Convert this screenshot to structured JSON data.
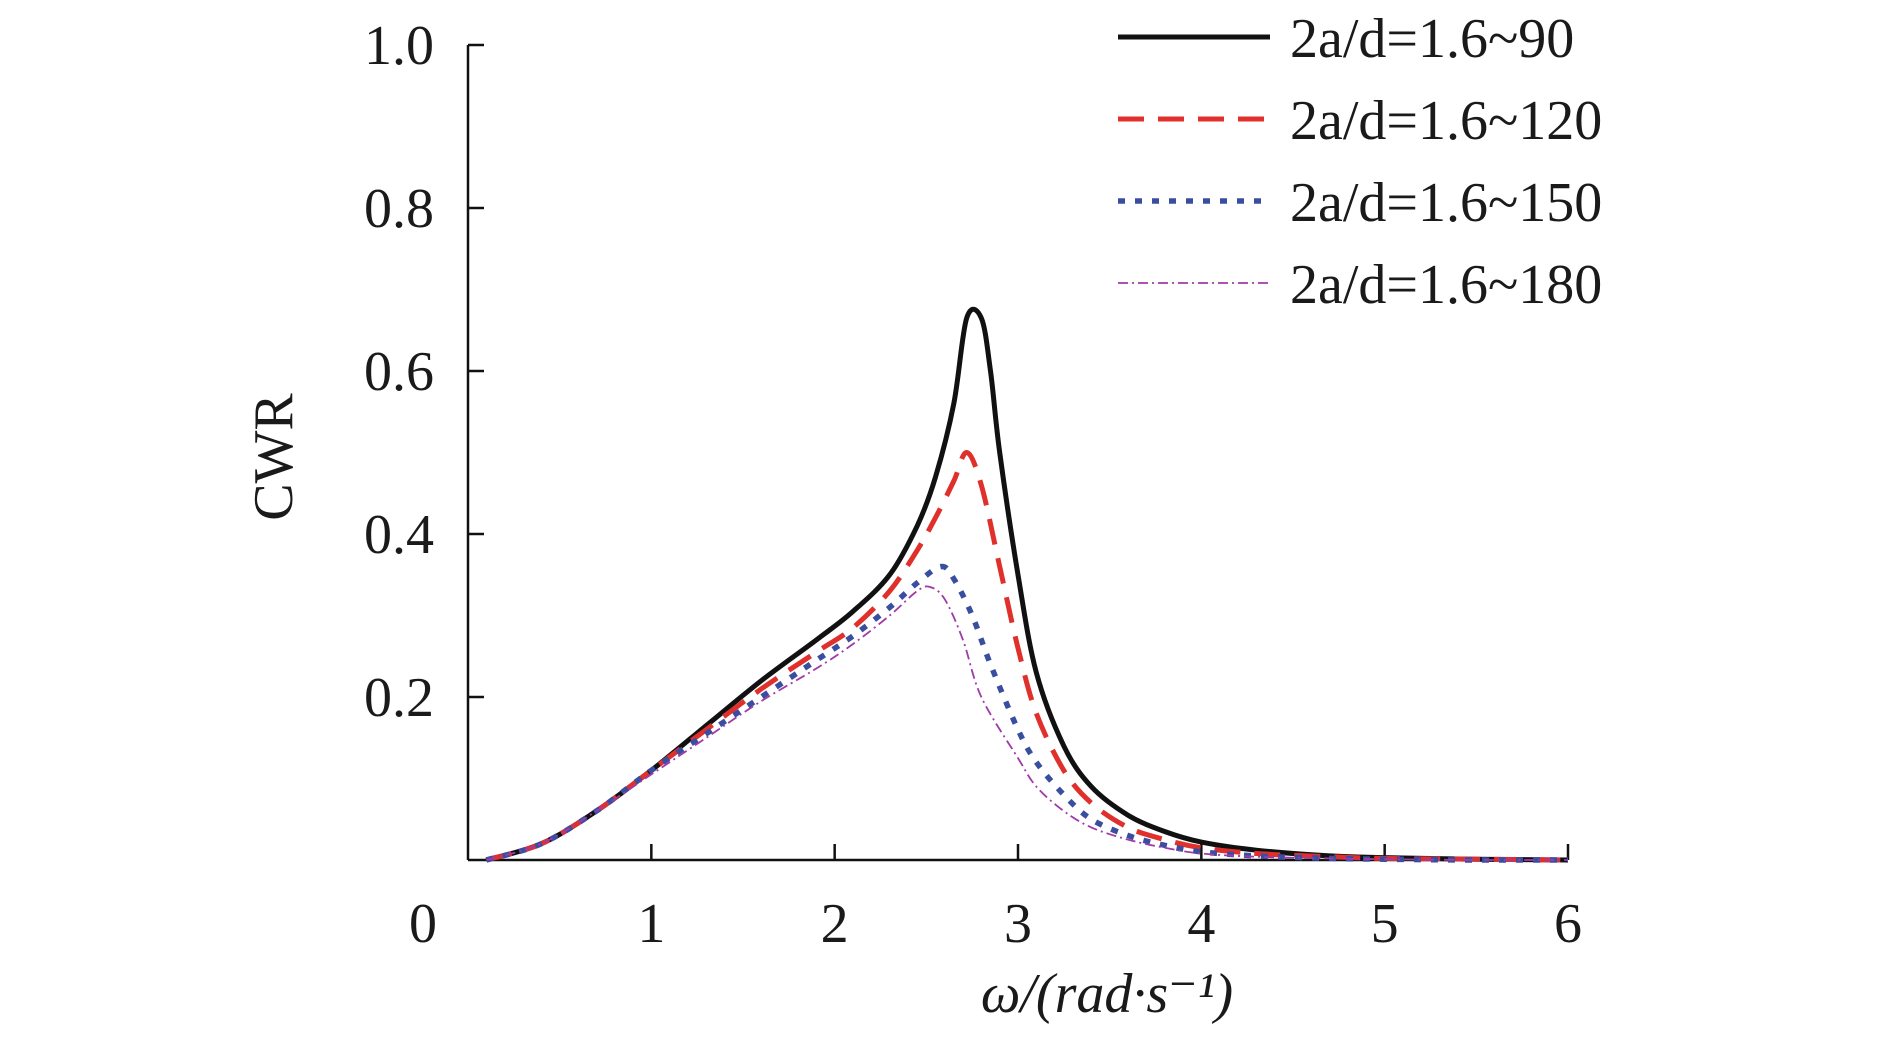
{
  "chart_data": {
    "type": "line",
    "title": "",
    "xlabel": "ω/(rad·s⁻¹)",
    "ylabel": "CWR",
    "xlim": [
      0,
      6
    ],
    "ylim": [
      0,
      1.0
    ],
    "x_ticks": [
      "0",
      "1",
      "2",
      "3",
      "4",
      "5",
      "6"
    ],
    "y_ticks": [
      "0.2",
      "0.4",
      "0.6",
      "0.8",
      "1.0"
    ],
    "grid": false,
    "legend_position": "top-right",
    "series": [
      {
        "name": "2a/d=1.6~90",
        "color": "#111111",
        "style": "solid",
        "x": [
          0.1,
          0.4,
          0.7,
          1.0,
          1.3,
          1.6,
          1.9,
          2.1,
          2.3,
          2.45,
          2.55,
          2.65,
          2.72,
          2.8,
          2.85,
          2.9,
          3.0,
          3.1,
          3.25,
          3.4,
          3.6,
          3.8,
          4.0,
          4.3,
          4.7,
          5.0,
          5.5,
          6.0
        ],
        "y": [
          0.0,
          0.02,
          0.06,
          0.11,
          0.165,
          0.22,
          0.27,
          0.305,
          0.35,
          0.41,
          0.47,
          0.56,
          0.665,
          0.665,
          0.6,
          0.5,
          0.35,
          0.23,
          0.14,
          0.09,
          0.055,
          0.035,
          0.022,
          0.012,
          0.005,
          0.003,
          0.001,
          0.0
        ]
      },
      {
        "name": "2a/d=1.6~120",
        "color": "#e0302c",
        "style": "dashed",
        "x": [
          0.1,
          0.4,
          0.7,
          1.0,
          1.3,
          1.6,
          1.9,
          2.1,
          2.3,
          2.45,
          2.55,
          2.65,
          2.72,
          2.8,
          2.9,
          3.0,
          3.1,
          3.25,
          3.4,
          3.6,
          3.8,
          4.0,
          4.3,
          4.7,
          5.0,
          5.5,
          6.0
        ],
        "y": [
          0.0,
          0.02,
          0.06,
          0.11,
          0.16,
          0.21,
          0.255,
          0.285,
          0.33,
          0.38,
          0.42,
          0.465,
          0.5,
          0.46,
          0.36,
          0.26,
          0.18,
          0.11,
          0.07,
          0.04,
          0.025,
          0.015,
          0.008,
          0.004,
          0.002,
          0.001,
          0.0
        ]
      },
      {
        "name": "2a/d=1.6~150",
        "color": "#3a4ea0",
        "style": "dotted",
        "x": [
          0.1,
          0.4,
          0.7,
          1.0,
          1.3,
          1.6,
          1.9,
          2.1,
          2.3,
          2.45,
          2.58,
          2.65,
          2.75,
          2.85,
          3.0,
          3.1,
          3.25,
          3.4,
          3.6,
          3.8,
          4.0,
          4.3,
          4.7,
          5.0,
          5.5,
          6.0
        ],
        "y": [
          0.0,
          0.02,
          0.06,
          0.11,
          0.155,
          0.2,
          0.245,
          0.275,
          0.31,
          0.34,
          0.36,
          0.345,
          0.3,
          0.24,
          0.16,
          0.12,
          0.08,
          0.05,
          0.03,
          0.018,
          0.01,
          0.005,
          0.002,
          0.001,
          0.0,
          0.0
        ]
      },
      {
        "name": "2a/d=1.6~180",
        "color": "#a03aa8",
        "style": "dashdot",
        "x": [
          0.1,
          0.4,
          0.7,
          1.0,
          1.3,
          1.6,
          1.9,
          2.1,
          2.3,
          2.45,
          2.52,
          2.6,
          2.7,
          2.8,
          3.0,
          3.1,
          3.25,
          3.4,
          3.6,
          3.8,
          4.0,
          4.3,
          4.7,
          5.0,
          5.5,
          6.0
        ],
        "y": [
          0.0,
          0.02,
          0.06,
          0.105,
          0.15,
          0.195,
          0.235,
          0.265,
          0.3,
          0.33,
          0.335,
          0.32,
          0.27,
          0.2,
          0.125,
          0.09,
          0.06,
          0.04,
          0.025,
          0.015,
          0.008,
          0.004,
          0.002,
          0.001,
          0.0,
          0.0
        ]
      }
    ]
  }
}
